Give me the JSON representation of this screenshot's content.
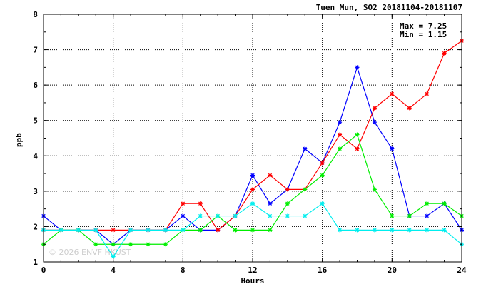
{
  "chart_data": {
    "type": "line",
    "title": "Tuen Mun, SO2 20181104-20181107",
    "xlabel": "Hours",
    "ylabel": "ppb",
    "xlim": [
      0,
      24
    ],
    "ylim": [
      1,
      8
    ],
    "xticks": [
      0,
      4,
      8,
      12,
      16,
      20,
      24
    ],
    "yticks": [
      1,
      2,
      3,
      4,
      5,
      6,
      7,
      8
    ],
    "grid": true,
    "annotations": [
      "Max = 7.25",
      "Min = 1.15"
    ],
    "watermark": "© 2026 ENVF HKUST",
    "x": [
      0,
      1,
      2,
      3,
      4,
      5,
      6,
      7,
      8,
      9,
      10,
      11,
      12,
      13,
      14,
      15,
      16,
      17,
      18,
      19,
      20,
      21,
      22,
      23,
      24
    ],
    "series": [
      {
        "color": "#0000ff",
        "values": [
          2.3,
          1.9,
          1.9,
          1.9,
          1.5,
          1.9,
          1.9,
          1.9,
          2.3,
          1.9,
          1.9,
          2.3,
          3.45,
          2.65,
          3.05,
          4.2,
          3.8,
          4.95,
          6.5,
          4.95,
          4.2,
          2.3,
          2.3,
          2.65,
          1.9
        ]
      },
      {
        "color": "#ff0000",
        "values": [
          1.9,
          1.9,
          1.9,
          1.9,
          1.9,
          1.9,
          1.9,
          1.9,
          2.65,
          2.65,
          1.9,
          2.3,
          3.05,
          3.45,
          3.05,
          3.05,
          3.8,
          4.6,
          4.2,
          5.35,
          5.75,
          5.35,
          5.75,
          6.9,
          7.25
        ]
      },
      {
        "color": "#00ee00",
        "values": [
          1.5,
          1.9,
          1.9,
          1.5,
          1.5,
          1.5,
          1.5,
          1.5,
          1.9,
          1.9,
          2.3,
          1.9,
          1.9,
          1.9,
          2.65,
          3.05,
          3.45,
          4.2,
          4.6,
          3.05,
          2.3,
          2.3,
          2.65,
          2.65,
          2.3
        ]
      },
      {
        "color": "#00eeee",
        "values": [
          1.9,
          1.9,
          1.9,
          1.9,
          1.15,
          1.9,
          1.9,
          1.9,
          1.9,
          2.3,
          2.3,
          2.3,
          2.65,
          2.3,
          2.3,
          2.3,
          2.65,
          1.9,
          1.9,
          1.9,
          1.9,
          1.9,
          1.9,
          1.9,
          1.5
        ]
      }
    ]
  }
}
